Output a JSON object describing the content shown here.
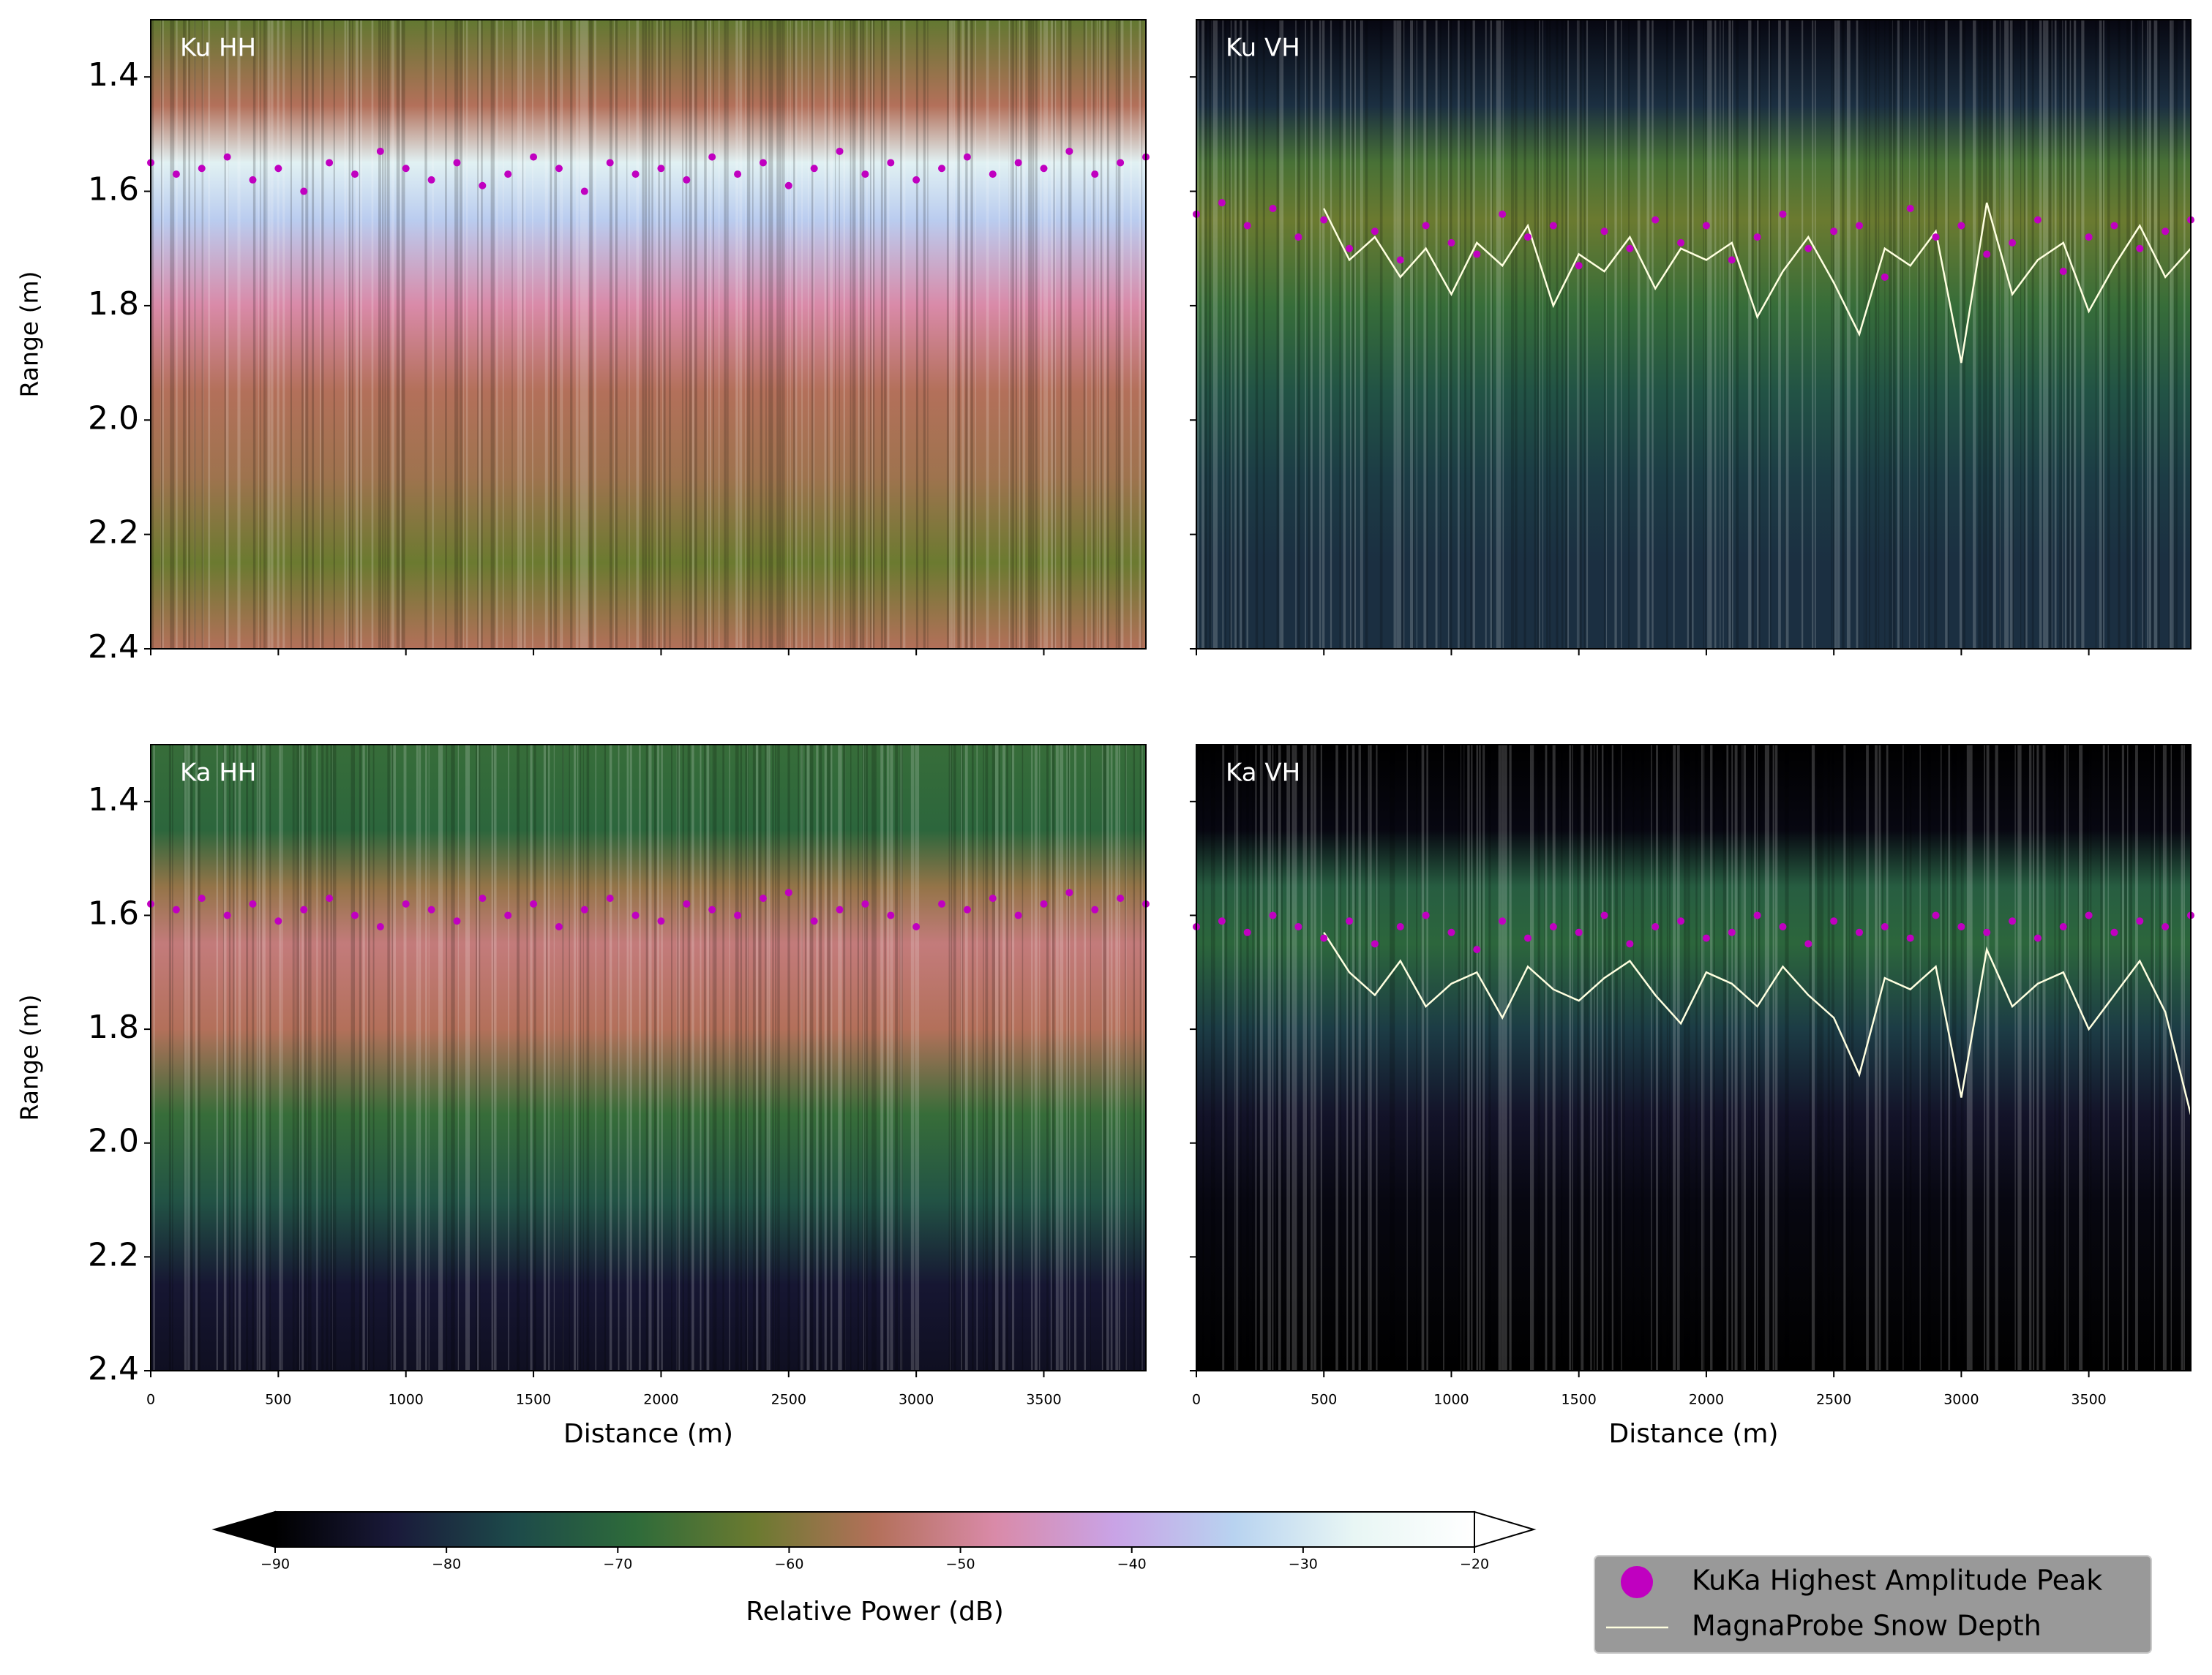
{
  "chart_data": [
    {
      "type": "scatter",
      "title": "Ku HH",
      "ylabel": "Range (m)",
      "xlim": [
        0,
        3900
      ],
      "ylim": [
        2.4,
        1.3
      ],
      "yticks": [
        1.4,
        1.6,
        1.8,
        {
          "value": 2,
          "label": "2.0"
        },
        2.2,
        2.4
      ],
      "x": [
        0,
        100,
        200,
        300,
        400,
        500,
        600,
        700,
        800,
        900,
        1000,
        1100,
        1200,
        1300,
        1400,
        1500,
        1600,
        1700,
        1800,
        1900,
        2000,
        2100,
        2200,
        2300,
        2400,
        2500,
        2600,
        2700,
        2800,
        2900,
        3000,
        3100,
        3200,
        3300,
        3400,
        3500,
        3600,
        3700,
        3800,
        3900
      ],
      "peaks": [
        1.55,
        1.57,
        1.56,
        1.54,
        1.58,
        1.56,
        1.6,
        1.55,
        1.57,
        1.53,
        1.56,
        1.58,
        1.55,
        1.59,
        1.57,
        1.54,
        1.56,
        1.6,
        1.55,
        1.57,
        1.56,
        1.58,
        1.54,
        1.57,
        1.55,
        1.59,
        1.56,
        1.53,
        1.57,
        1.55,
        1.58,
        1.56,
        1.54,
        1.57,
        1.55,
        1.56,
        1.53,
        1.57,
        1.55,
        1.54
      ],
      "power_ranges": [
        1.3,
        1.45,
        1.55,
        1.65,
        1.8,
        1.95,
        2.1,
        2.25,
        2.4
      ],
      "power": [
        -63,
        -55,
        -28,
        -35,
        -48,
        -55,
        -57,
        -62,
        -55
      ]
    },
    {
      "type": "scatter",
      "title": "Ku VH",
      "xlim": [
        0,
        3900
      ],
      "ylim": [
        2.4,
        1.3
      ],
      "x": [
        0,
        100,
        200,
        300,
        400,
        500,
        600,
        700,
        800,
        900,
        1000,
        1100,
        1200,
        1300,
        1400,
        1500,
        1600,
        1700,
        1800,
        1900,
        2000,
        2100,
        2200,
        2300,
        2400,
        2500,
        2600,
        2700,
        2800,
        2900,
        3000,
        3100,
        3200,
        3300,
        3400,
        3500,
        3600,
        3700,
        3800,
        3900
      ],
      "peaks": [
        1.64,
        1.62,
        1.66,
        1.63,
        1.68,
        1.65,
        1.7,
        1.67,
        1.72,
        1.66,
        1.69,
        1.71,
        1.64,
        1.68,
        1.66,
        1.73,
        1.67,
        1.7,
        1.65,
        1.69,
        1.66,
        1.72,
        1.68,
        1.64,
        1.7,
        1.67,
        1.66,
        1.75,
        1.63,
        1.68,
        1.66,
        1.71,
        1.69,
        1.65,
        1.74,
        1.68,
        1.66,
        1.7,
        1.67,
        1.65
      ],
      "snow_depth": [
        null,
        null,
        null,
        null,
        null,
        1.63,
        1.72,
        1.68,
        1.75,
        1.7,
        1.78,
        1.69,
        1.73,
        1.66,
        1.8,
        1.71,
        1.74,
        1.68,
        1.77,
        1.7,
        1.72,
        1.69,
        1.82,
        1.74,
        1.68,
        1.76,
        1.85,
        1.7,
        1.73,
        1.67,
        1.9,
        1.62,
        1.78,
        1.72,
        1.69,
        1.81,
        1.73,
        1.66,
        1.75,
        1.7
      ],
      "power_ranges": [
        1.3,
        1.45,
        1.55,
        1.65,
        1.8,
        1.95,
        2.1,
        2.25,
        2.4
      ],
      "power": [
        -88,
        -80,
        -66,
        -62,
        -68,
        -74,
        -78,
        -80,
        -80
      ]
    },
    {
      "type": "scatter",
      "title": "Ka HH",
      "xlabel": "Distance (m)",
      "ylabel": "Range (m)",
      "xlim": [
        0,
        3900
      ],
      "ylim": [
        2.4,
        1.3
      ],
      "xticks": [
        0,
        500,
        1000,
        1500,
        2000,
        2500,
        3000,
        3500
      ],
      "yticks": [
        1.4,
        1.6,
        1.8,
        {
          "value": 2,
          "label": "2.0"
        },
        2.2,
        2.4
      ],
      "x": [
        0,
        100,
        200,
        300,
        400,
        500,
        600,
        700,
        800,
        900,
        1000,
        1100,
        1200,
        1300,
        1400,
        1500,
        1600,
        1700,
        1800,
        1900,
        2000,
        2100,
        2200,
        2300,
        2400,
        2500,
        2600,
        2700,
        2800,
        2900,
        3000,
        3100,
        3200,
        3300,
        3400,
        3500,
        3600,
        3700,
        3800,
        3900
      ],
      "peaks": [
        1.58,
        1.59,
        1.57,
        1.6,
        1.58,
        1.61,
        1.59,
        1.57,
        1.6,
        1.62,
        1.58,
        1.59,
        1.61,
        1.57,
        1.6,
        1.58,
        1.62,
        1.59,
        1.57,
        1.6,
        1.61,
        1.58,
        1.59,
        1.6,
        1.57,
        1.56,
        1.61,
        1.59,
        1.58,
        1.6,
        1.62,
        1.58,
        1.59,
        1.57,
        1.6,
        1.58,
        1.56,
        1.59,
        1.57,
        1.58
      ],
      "power_ranges": [
        1.3,
        1.45,
        1.55,
        1.65,
        1.8,
        1.95,
        2.1,
        2.25,
        2.4
      ],
      "power": [
        -68,
        -70,
        -58,
        -52,
        -55,
        -68,
        -74,
        -84,
        -86
      ]
    },
    {
      "type": "scatter",
      "title": "Ka VH",
      "xlabel": "Distance (m)",
      "xlim": [
        0,
        3900
      ],
      "ylim": [
        2.4,
        1.3
      ],
      "xticks": [
        0,
        500,
        1000,
        1500,
        2000,
        2500,
        3000,
        3500
      ],
      "x": [
        0,
        100,
        200,
        300,
        400,
        500,
        600,
        700,
        800,
        900,
        1000,
        1100,
        1200,
        1300,
        1400,
        1500,
        1600,
        1700,
        1800,
        1900,
        2000,
        2100,
        2200,
        2300,
        2400,
        2500,
        2600,
        2700,
        2800,
        2900,
        3000,
        3100,
        3200,
        3300,
        3400,
        3500,
        3600,
        3700,
        3800,
        3900
      ],
      "peaks": [
        1.62,
        1.61,
        1.63,
        1.6,
        1.62,
        1.64,
        1.61,
        1.65,
        1.62,
        1.6,
        1.63,
        1.66,
        1.61,
        1.64,
        1.62,
        1.63,
        1.6,
        1.65,
        1.62,
        1.61,
        1.64,
        1.63,
        1.6,
        1.62,
        1.65,
        1.61,
        1.63,
        1.62,
        1.64,
        1.6,
        1.62,
        1.63,
        1.61,
        1.64,
        1.62,
        1.6,
        1.63,
        1.61,
        1.62,
        1.6
      ],
      "snow_depth": [
        null,
        null,
        null,
        null,
        null,
        1.63,
        1.7,
        1.74,
        1.68,
        1.76,
        1.72,
        1.7,
        1.78,
        1.69,
        1.73,
        1.75,
        1.71,
        1.68,
        1.74,
        1.79,
        1.7,
        1.72,
        1.76,
        1.69,
        1.74,
        1.78,
        1.88,
        1.71,
        1.73,
        1.69,
        1.92,
        1.66,
        1.76,
        1.72,
        1.7,
        1.8,
        1.74,
        1.68,
        1.77,
        1.95
      ],
      "power_ranges": [
        1.3,
        1.45,
        1.55,
        1.65,
        1.8,
        1.95,
        2.1,
        2.25,
        2.4
      ],
      "power": [
        -90,
        -88,
        -72,
        -70,
        -78,
        -85,
        -88,
        -89,
        -90
      ]
    }
  ],
  "colorbar": {
    "label": "Relative Power (dB)",
    "lim": [
      -90,
      -20
    ],
    "ticks": [
      {
        "value": -90,
        "label": "−90"
      },
      {
        "value": -80,
        "label": "−80"
      },
      {
        "value": -70,
        "label": "−70"
      },
      {
        "value": -60,
        "label": "−60"
      },
      {
        "value": -50,
        "label": "−50"
      },
      {
        "value": -40,
        "label": "−40"
      },
      {
        "value": -30,
        "label": "−30"
      },
      {
        "value": -20,
        "label": "−20"
      }
    ],
    "colors": [
      "#000000",
      "#1a1a3a",
      "#1d4a4a",
      "#2e6b3a",
      "#6b7a30",
      "#b3705a",
      "#d98aa8",
      "#c9a3e6",
      "#b8d3f0",
      "#e8f6f4",
      "#ffffff"
    ]
  },
  "legend": [
    {
      "name": "KuKa Highest Amplitude Peak",
      "color": "#c000c0"
    },
    {
      "name": "MagnaProbe Snow Depth",
      "color": "#ffffe0"
    }
  ]
}
